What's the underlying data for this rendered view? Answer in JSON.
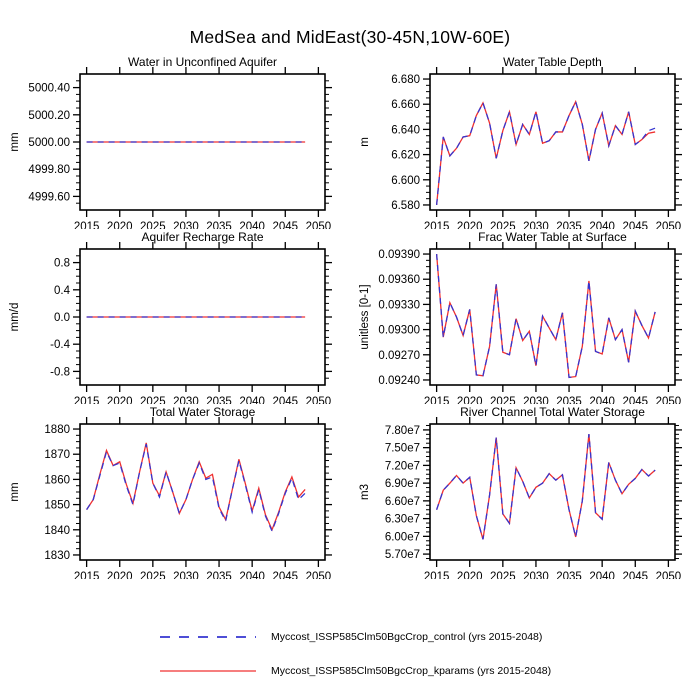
{
  "title": "MedSea and MidEast(30-45N,10W-60E)",
  "colors": {
    "control": "#3535d0",
    "kparams": "#f03030"
  },
  "legend": [
    {
      "label": "Myccost_ISSP585Clm50BgcCrop_control (yrs 2015-2048)",
      "color": "#3535d0",
      "style": "dashed"
    },
    {
      "label": "Myccost_ISSP585Clm50BgcCrop_kparams (yrs 2015-2048)",
      "color": "#f03030",
      "style": "solid"
    }
  ],
  "years": [
    2015,
    2016,
    2017,
    2018,
    2019,
    2020,
    2021,
    2022,
    2023,
    2024,
    2025,
    2026,
    2027,
    2028,
    2029,
    2030,
    2031,
    2032,
    2033,
    2034,
    2035,
    2036,
    2037,
    2038,
    2039,
    2040,
    2041,
    2042,
    2043,
    2044,
    2045,
    2046,
    2047,
    2048
  ],
  "xlim": [
    2014,
    2051
  ],
  "xticks": [
    2015,
    2020,
    2025,
    2030,
    2035,
    2040,
    2045,
    2050
  ],
  "chart_data": [
    {
      "type": "line",
      "title": "Water in Unconfined Aquifer",
      "ylabel": "mm",
      "ylim": [
        4999.5,
        5000.5
      ],
      "ytick_values": [
        4999.6,
        4999.8,
        5000.0,
        5000.2,
        5000.4
      ],
      "ytick_labels": [
        "4999.60",
        "4999.80",
        "5000.00",
        "5000.20",
        "5000.40"
      ],
      "series": [
        {
          "name": "Myccost_ISSP585Clm50BgcCrop_kparams",
          "color": "kparams",
          "dashed": false,
          "values": [
            5000.0,
            5000.0,
            5000.0,
            5000.0,
            5000.0,
            5000.0,
            5000.0,
            5000.0,
            5000.0,
            5000.0,
            5000.0,
            5000.0,
            5000.0,
            5000.0,
            5000.0,
            5000.0,
            5000.0,
            5000.0,
            5000.0,
            5000.0,
            5000.0,
            5000.0,
            5000.0,
            5000.0,
            5000.0,
            5000.0,
            5000.0,
            5000.0,
            5000.0,
            5000.0,
            5000.0,
            5000.0,
            5000.0,
            5000.0
          ]
        },
        {
          "name": "Myccost_ISSP585Clm50BgcCrop_control",
          "color": "control",
          "dashed": true,
          "values": [
            5000.0,
            5000.0,
            5000.0,
            5000.0,
            5000.0,
            5000.0,
            5000.0,
            5000.0,
            5000.0,
            5000.0,
            5000.0,
            5000.0,
            5000.0,
            5000.0,
            5000.0,
            5000.0,
            5000.0,
            5000.0,
            5000.0,
            5000.0,
            5000.0,
            5000.0,
            5000.0,
            5000.0,
            5000.0,
            5000.0,
            5000.0,
            5000.0,
            5000.0,
            5000.0,
            5000.0,
            5000.0,
            5000.0,
            5000.0
          ]
        }
      ]
    },
    {
      "type": "line",
      "title": "Water Table Depth",
      "ylabel": "m",
      "ylim": [
        6.576,
        6.684
      ],
      "ytick_values": [
        6.58,
        6.6,
        6.62,
        6.64,
        6.66,
        6.68
      ],
      "ytick_labels": [
        "6.580",
        "6.600",
        "6.620",
        "6.640",
        "6.660",
        "6.680"
      ],
      "series": [
        {
          "name": "Myccost_ISSP585Clm50BgcCrop_kparams",
          "color": "kparams",
          "dashed": false,
          "values": [
            6.58,
            6.634,
            6.619,
            6.625,
            6.634,
            6.635,
            6.651,
            6.661,
            6.645,
            6.617,
            6.639,
            6.654,
            6.628,
            6.644,
            6.636,
            6.654,
            6.629,
            6.631,
            6.638,
            6.638,
            6.651,
            6.662,
            6.644,
            6.615,
            6.64,
            6.653,
            6.627,
            6.643,
            6.636,
            6.654,
            6.628,
            6.632,
            6.637,
            6.638
          ]
        },
        {
          "name": "Myccost_ISSP585Clm50BgcCrop_control",
          "color": "control",
          "dashed": true,
          "values": [
            6.58,
            6.634,
            6.619,
            6.625,
            6.634,
            6.635,
            6.651,
            6.661,
            6.645,
            6.617,
            6.639,
            6.654,
            6.628,
            6.644,
            6.636,
            6.654,
            6.629,
            6.631,
            6.638,
            6.638,
            6.651,
            6.662,
            6.644,
            6.615,
            6.64,
            6.653,
            6.627,
            6.643,
            6.636,
            6.654,
            6.628,
            6.632,
            6.639,
            6.641
          ]
        }
      ]
    },
    {
      "type": "line",
      "title": "Aquifer Recharge Rate",
      "ylabel": "mm/d",
      "ylim": [
        -1.0,
        1.0
      ],
      "ytick_values": [
        -0.8,
        -0.4,
        0.0,
        0.4,
        0.8
      ],
      "ytick_labels": [
        "-0.8",
        "-0.4",
        "0.0",
        "0.4",
        "0.8"
      ],
      "series": [
        {
          "name": "Myccost_ISSP585Clm50BgcCrop_kparams",
          "color": "kparams",
          "dashed": false,
          "values": [
            0.0,
            0.0,
            0.0,
            0.0,
            0.0,
            0.0,
            0.0,
            0.0,
            0.0,
            0.0,
            0.0,
            0.0,
            0.0,
            0.0,
            0.0,
            0.0,
            0.0,
            0.0,
            0.0,
            0.0,
            0.0,
            0.0,
            0.0,
            0.0,
            0.0,
            0.0,
            0.0,
            0.0,
            0.0,
            0.0,
            0.0,
            0.0,
            0.0,
            0.0
          ]
        },
        {
          "name": "Myccost_ISSP585Clm50BgcCrop_control",
          "color": "control",
          "dashed": true,
          "values": [
            0.0,
            0.0,
            0.0,
            0.0,
            0.0,
            0.0,
            0.0,
            0.0,
            0.0,
            0.0,
            0.0,
            0.0,
            0.0,
            0.0,
            0.0,
            0.0,
            0.0,
            0.0,
            0.0,
            0.0,
            0.0,
            0.0,
            0.0,
            0.0,
            0.0,
            0.0,
            0.0,
            0.0,
            0.0,
            0.0,
            0.0,
            0.0,
            0.0,
            0.0
          ]
        }
      ]
    },
    {
      "type": "line",
      "title": "Frac Water Table at Surface",
      "ylabel": "unitless [0-1]",
      "ylim": [
        0.09234,
        0.09396
      ],
      "ytick_values": [
        0.0924,
        0.0927,
        0.093,
        0.0933,
        0.0936,
        0.0939
      ],
      "ytick_labels": [
        "0.09240",
        "0.09270",
        "0.09300",
        "0.09330",
        "0.09360",
        "0.09390"
      ],
      "series": [
        {
          "name": "Myccost_ISSP585Clm50BgcCrop_kparams",
          "color": "kparams",
          "dashed": false,
          "values": [
            0.0939,
            0.09291,
            0.09332,
            0.09315,
            0.09293,
            0.09324,
            0.09246,
            0.09245,
            0.0928,
            0.09354,
            0.09273,
            0.0927,
            0.09313,
            0.09287,
            0.09298,
            0.09257,
            0.09316,
            0.09302,
            0.09288,
            0.0932,
            0.09243,
            0.09244,
            0.0928,
            0.09358,
            0.09274,
            0.09271,
            0.09314,
            0.09288,
            0.093,
            0.09261,
            0.09322,
            0.09305,
            0.0929,
            0.09321
          ]
        },
        {
          "name": "Myccost_ISSP585Clm50BgcCrop_control",
          "color": "control",
          "dashed": true,
          "values": [
            0.0939,
            0.09291,
            0.09332,
            0.09315,
            0.09293,
            0.09324,
            0.09246,
            0.09245,
            0.0928,
            0.09354,
            0.09273,
            0.0927,
            0.09313,
            0.09287,
            0.09298,
            0.09257,
            0.09316,
            0.09302,
            0.09288,
            0.0932,
            0.09243,
            0.09244,
            0.0928,
            0.09358,
            0.09274,
            0.09271,
            0.09314,
            0.09288,
            0.093,
            0.09261,
            0.09322,
            0.09305,
            0.0929,
            0.09321
          ]
        }
      ]
    },
    {
      "type": "line",
      "title": "Total Water Storage",
      "ylabel": "mm",
      "ylim": [
        1828,
        1882
      ],
      "ytick_values": [
        1830,
        1840,
        1850,
        1860,
        1870,
        1880
      ],
      "ytick_labels": [
        "1830",
        "1840",
        "1850",
        "1860",
        "1870",
        "1880"
      ],
      "series": [
        {
          "name": "Myccost_ISSP585Clm50BgcCrop_kparams",
          "color": "kparams",
          "dashed": false,
          "values": [
            1848,
            1852,
            1862,
            1871.5,
            1865.5,
            1867,
            1858,
            1850.5,
            1863,
            1874.5,
            1858.5,
            1853.5,
            1863,
            1855,
            1846.5,
            1852,
            1860,
            1867,
            1860.5,
            1862,
            1849,
            1844,
            1856,
            1868,
            1858,
            1847.5,
            1856.5,
            1846,
            1840,
            1847,
            1855,
            1861,
            1853,
            1856
          ]
        },
        {
          "name": "Myccost_ISSP585Clm50BgcCrop_control",
          "color": "control",
          "dashed": true,
          "values": [
            1848,
            1852,
            1861.5,
            1871,
            1865.5,
            1866.5,
            1857.5,
            1850,
            1863,
            1874,
            1858.5,
            1853,
            1863,
            1855,
            1846.5,
            1852,
            1860,
            1866.5,
            1860,
            1861,
            1848.5,
            1843.5,
            1856,
            1867.5,
            1857.5,
            1847,
            1856,
            1845.5,
            1839.5,
            1846.5,
            1854.5,
            1860.5,
            1852,
            1854.5
          ]
        }
      ]
    },
    {
      "type": "line",
      "title": "River Channel Total Water Storage",
      "ylabel": "m3",
      "ylim": [
        56000000.0,
        79000000.0
      ],
      "ytick_values": [
        57000000.0,
        60000000.0,
        63000000.0,
        66000000.0,
        69000000.0,
        72000000.0,
        75000000.0,
        78000000.0
      ],
      "ytick_labels": [
        "5.70e7",
        "6.00e7",
        "6.30e7",
        "6.60e7",
        "6.90e7",
        "7.20e7",
        "7.50e7",
        "7.80e7"
      ],
      "series": [
        {
          "name": "Myccost_ISSP585Clm50BgcCrop_kparams",
          "color": "kparams",
          "dashed": false,
          "values": [
            64500000.0,
            67800000.0,
            69000000.0,
            70300000.0,
            69000000.0,
            70000000.0,
            63500000.0,
            59500000.0,
            67000000.0,
            76700000.0,
            63800000.0,
            62200000.0,
            71600000.0,
            69300000.0,
            66500000.0,
            68300000.0,
            69000000.0,
            70600000.0,
            69500000.0,
            70400000.0,
            64500000.0,
            59900000.0,
            66000000.0,
            77300000.0,
            64000000.0,
            62900000.0,
            72500000.0,
            69500000.0,
            67200000.0,
            68800000.0,
            69800000.0,
            71300000.0,
            70200000.0,
            71200000.0
          ]
        },
        {
          "name": "Myccost_ISSP585Clm50BgcCrop_control",
          "color": "control",
          "dashed": true,
          "values": [
            64500000.0,
            67800000.0,
            69000000.0,
            70300000.0,
            69000000.0,
            70000000.0,
            63500000.0,
            59500000.0,
            67000000.0,
            76700000.0,
            63800000.0,
            62200000.0,
            71600000.0,
            69300000.0,
            66500000.0,
            68300000.0,
            69000000.0,
            70600000.0,
            69500000.0,
            70400000.0,
            64500000.0,
            59900000.0,
            66000000.0,
            77300000.0,
            64000000.0,
            62900000.0,
            72500000.0,
            69500000.0,
            67200000.0,
            68800000.0,
            69800000.0,
            71300000.0,
            70200000.0,
            71200000.0
          ]
        }
      ]
    }
  ]
}
